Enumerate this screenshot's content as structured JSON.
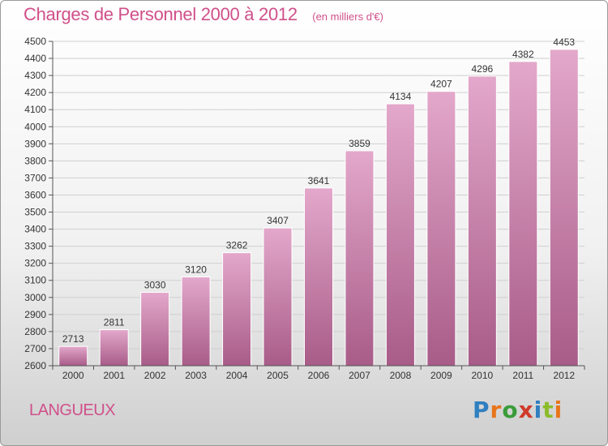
{
  "chart_data": {
    "type": "bar",
    "title": "Charges de Personnel 2000 à 2012",
    "subtitle": "(en milliers d'€)",
    "categories": [
      "2000",
      "2001",
      "2002",
      "2003",
      "2004",
      "2005",
      "2006",
      "2007",
      "2008",
      "2009",
      "2010",
      "2011",
      "2012"
    ],
    "values": [
      2713,
      2811,
      3030,
      3120,
      3262,
      3407,
      3641,
      3859,
      4134,
      4207,
      4296,
      4382,
      4453
    ],
    "ylim": [
      2600,
      4500
    ],
    "yticks": [
      2600,
      2700,
      2800,
      2900,
      3000,
      3100,
      3200,
      3300,
      3400,
      3500,
      3600,
      3700,
      3800,
      3900,
      4000,
      4100,
      4200,
      4300,
      4400,
      4500
    ],
    "xlabel": "",
    "ylabel": "",
    "grid": true,
    "colors": {
      "bar_top": "#e3a8cb",
      "bar_bottom": "#a85c88",
      "bar_edge": "#ffffff",
      "title": "#d0508a",
      "grid": "#cfcfcf",
      "axis": "#555555"
    }
  },
  "location": "LANGUEUX",
  "brand": {
    "text": "Proxiti",
    "letter_colors": [
      "#2f7fc0",
      "#e8751a",
      "#3a9c3a",
      "#d03a2a",
      "#2f7fc0",
      "#8cbc2a",
      "#e8751a"
    ]
  }
}
